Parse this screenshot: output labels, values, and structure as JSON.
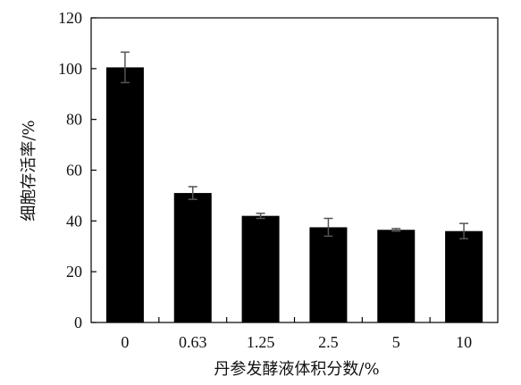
{
  "chart_data": {
    "type": "bar",
    "title": "",
    "xlabel": "丹参发酵液体积分数/%",
    "ylabel": "细胞存活率/%",
    "categories": [
      "0",
      "0.63",
      "1.25",
      "2.5",
      "5",
      "10"
    ],
    "values": [
      100.5,
      51,
      42,
      37.5,
      36.5,
      36
    ],
    "errors": [
      6,
      2.5,
      1,
      3.5,
      0.5,
      3
    ],
    "ylim": [
      0,
      120
    ],
    "yticks": [
      0,
      20,
      40,
      60,
      80,
      100,
      120
    ],
    "grid": false,
    "legend": "none",
    "colors": {
      "bar": "#000000",
      "error_bar": "#555555",
      "axis": "#000000"
    }
  }
}
